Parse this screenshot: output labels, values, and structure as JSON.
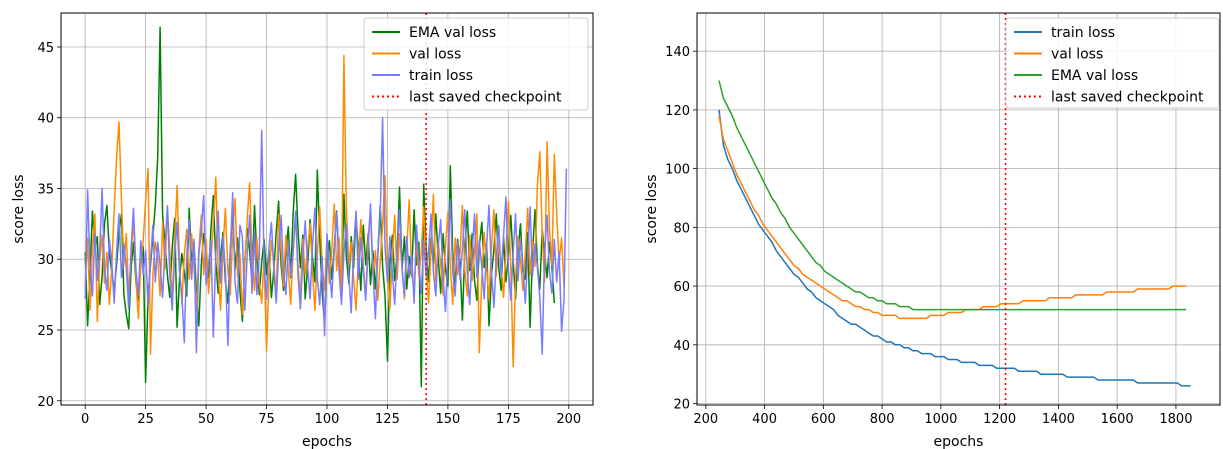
{
  "chart_data": [
    {
      "type": "line",
      "xlabel": "epochs",
      "ylabel": "score loss",
      "xlim": [
        -10,
        210
      ],
      "ylim": [
        19.7,
        47.4
      ],
      "xticks": [
        0,
        25,
        50,
        75,
        100,
        125,
        150,
        175,
        200
      ],
      "yticks": [
        20,
        25,
        30,
        35,
        40,
        45
      ],
      "grid": true,
      "legend_position": "top-right",
      "checkpoint": {
        "label": "last saved checkpoint",
        "x": 141,
        "color": "#ff0000"
      },
      "series": [
        {
          "name": "EMA val loss",
          "color": "#008000",
          "x_start": 0,
          "x_step": 1,
          "values": [
            30.5,
            25.3,
            29.0,
            33.4,
            30.7,
            31.6,
            26.8,
            28.8,
            32.5,
            33.8,
            30.4,
            29.1,
            27.8,
            29.6,
            31.9,
            33.2,
            27.5,
            26.1,
            25.1,
            29.4,
            31.2,
            28.3,
            27.1,
            29.8,
            30.9,
            21.3,
            27.4,
            29.6,
            31.6,
            33.8,
            37.2,
            46.4,
            33.1,
            31.2,
            28.9,
            27.3,
            30.8,
            32.9,
            25.2,
            28.6,
            30.4,
            29.1,
            27.4,
            33.6,
            29.9,
            31.2,
            27.5,
            25.3,
            29.6,
            31.8,
            30.5,
            28.7,
            32.1,
            34.5,
            29.8,
            27.6,
            30.2,
            31.9,
            28.4,
            26.9,
            30.7,
            33.1,
            29.3,
            31.5,
            27.8,
            25.6,
            29.9,
            32.2,
            30.6,
            28.4,
            33.8,
            30.2,
            27.5,
            29.8,
            31.4,
            28.9,
            30.6,
            27.3,
            29.2,
            31.9,
            34.1,
            29.6,
            27.8,
            30.5,
            32.3,
            28.7,
            33.2,
            36.0,
            32.1,
            29.4,
            31.7,
            27.2,
            29.6,
            32.8,
            30.1,
            28.4,
            36.3,
            31.5,
            27.6,
            25.4,
            29.8,
            31.3,
            28.6,
            30.9,
            33.4,
            29.7,
            27.5,
            34.6,
            30.2,
            28.3,
            31.6,
            29.4,
            33.1,
            30.5,
            27.8,
            32.4,
            29.6,
            31.8,
            28.2,
            30.6,
            27.9,
            30.3,
            33.8,
            29.5,
            27.4,
            22.8,
            29.6,
            31.7,
            28.5,
            30.4,
            35.1,
            29.3,
            31.6,
            27.9,
            30.2,
            28.8,
            33.5,
            29.6,
            31.2,
            21.0,
            35.3,
            30.8,
            28.4,
            31.5,
            29.7,
            33.2,
            30.1,
            27.6,
            31.8,
            29.3,
            28.1,
            36.6,
            30.5,
            28.2,
            31.4,
            29.8,
            25.7,
            30.6,
            33.4,
            29.2,
            31.8,
            28.5,
            27.1,
            30.9,
            32.6,
            29.4,
            31.1,
            25.3,
            28.8,
            30.7,
            33.2,
            29.5,
            27.8,
            31.6,
            28.4,
            30.3,
            33.1,
            29.8,
            27.2,
            30.6,
            32.5,
            29.1,
            28.6,
            31.9,
            25.2,
            30.4,
            33.5,
            29.6,
            27.9,
            32.1,
            30.4,
            28.7,
            31.2,
            29.5,
            26.9
          ]
        },
        {
          "name": "val loss",
          "color": "#ff8c00",
          "x_start": 0,
          "x_step": 1,
          "values": [
            28.2,
            31.5,
            26.4,
            30.8,
            33.2,
            25.6,
            29.9,
            31.7,
            28.3,
            30.5,
            26.8,
            29.4,
            33.6,
            37.2,
            39.7,
            34.1,
            29.6,
            31.8,
            27.4,
            30.2,
            32.9,
            28.5,
            25.8,
            29.7,
            31.3,
            34.1,
            36.4,
            23.3,
            28.9,
            31.2,
            30.1,
            27.4,
            32.6,
            29.3,
            33.8,
            30.5,
            27.1,
            31.4,
            35.2,
            29.7,
            26.8,
            30.3,
            32.1,
            28.6,
            31.8,
            29.4,
            26.3,
            30.6,
            33.1,
            28.9,
            31.4,
            27.6,
            29.8,
            32.5,
            35.8,
            29.1,
            26.4,
            30.7,
            33.6,
            29.2,
            27.5,
            31.9,
            34.3,
            28.8,
            30.4,
            26.1,
            29.7,
            32.8,
            35.4,
            30.2,
            27.8,
            31.5,
            28.4,
            26.9,
            30.1,
            23.5,
            28.6,
            31.3,
            29.8,
            27.4,
            33.2,
            30.6,
            28.1,
            31.7,
            29.3,
            26.8,
            30.5,
            33.1,
            29.6,
            27.2,
            31.4,
            28.9,
            30.8,
            32.5,
            29.1,
            26.4,
            30.2,
            33.7,
            29.5,
            27.8,
            31.6,
            28.3,
            30.7,
            33.9,
            29.2,
            31.5,
            27.4,
            44.4,
            33.8,
            29.5,
            31.2,
            28.7,
            26.4,
            30.1,
            32.8,
            29.6,
            27.3,
            31.5,
            33.4,
            28.9,
            30.6,
            27.1,
            29.8,
            32.4,
            35.9,
            29.7,
            26.5,
            30.3,
            33.1,
            28.6,
            31.8,
            29.4,
            27.2,
            30.7,
            34.2,
            29.1,
            27.6,
            31.4,
            28.8,
            30.5,
            33.7,
            29.3,
            26.9,
            30.8,
            34.6,
            28.4,
            31.2,
            29.7,
            27.5,
            30.9,
            33.3,
            29.6,
            26.8,
            31.5,
            28.9,
            30.4,
            33.8,
            29.2,
            27.4,
            31.7,
            28.5,
            30.6,
            33.2,
            23.4,
            28.6,
            31.9,
            29.4,
            27.1,
            30.8,
            33.5,
            28.8,
            31.2,
            29.6,
            27.3,
            30.5,
            34.1,
            29.4,
            22.4,
            28.7,
            31.6,
            29.9,
            27.8,
            30.4,
            33.6,
            28.9,
            31.3,
            29.5,
            35.2,
            37.6,
            31.8,
            28.4,
            38.3,
            32.1,
            29.6,
            37.4,
            33.2,
            29.8,
            31.5,
            28.1
          ]
        },
        {
          "name": "train loss",
          "color": "#7b7bff",
          "x_start": 0,
          "x_step": 1,
          "values": [
            27.2,
            34.9,
            29.6,
            27.4,
            31.8,
            28.5,
            30.6,
            35.0,
            29.3,
            27.8,
            31.4,
            29.7,
            26.9,
            30.5,
            33.2,
            28.7,
            31.1,
            29.4,
            26.5,
            30.8,
            33.6,
            29.2,
            27.5,
            31.3,
            28.9,
            30.6,
            26.7,
            29.9,
            32.4,
            28.4,
            31.2,
            29.6,
            27.3,
            30.8,
            33.7,
            28.9,
            26.4,
            30.3,
            32.6,
            29.1,
            27.4,
            24.1,
            30.2,
            32.8,
            28.6,
            31.4,
            23.4,
            30.3,
            32.1,
            34.5,
            28.2,
            29.6,
            31.3,
            24.5,
            30.4,
            33.4,
            28.3,
            31.6,
            29.2,
            23.9,
            30.5,
            34.7,
            28.3,
            26.9,
            32.4,
            31.6,
            26.4,
            30.4,
            33.1,
            27.6,
            31.9,
            27.5,
            30.3,
            39.1,
            29.6,
            27.2,
            30.8,
            32.6,
            29.3,
            26.9,
            30.4,
            33.1,
            29.1,
            27.5,
            31.2,
            28.8,
            30.5,
            33.4,
            28.9,
            26.5,
            30.1,
            32.7,
            29.4,
            27.2,
            30.9,
            33.6,
            28.7,
            26.8,
            30.2,
            24.6,
            31.8,
            29.2,
            27.3,
            30.8,
            33.3,
            29.1,
            26.8,
            30.4,
            32.5,
            28.9,
            26.2,
            30.7,
            33.4,
            28.6,
            31.5,
            29.3,
            27.1,
            30.6,
            33.9,
            29.2,
            25.8,
            30.4,
            33.1,
            40.0,
            30.9,
            28.4,
            31.6,
            29.1,
            26.8,
            30.2,
            33.5,
            29.4,
            27.4,
            31.6,
            28.7,
            30.3,
            26.9,
            32.4,
            29.6,
            27.6,
            31.3,
            28.8,
            30.6,
            33.2,
            29.1,
            27.4,
            30.9,
            32.8,
            28.6,
            26.3,
            30.5,
            34.2,
            29.2,
            27.4,
            31.2,
            28.6,
            30.7,
            33.5,
            29.1,
            26.8,
            30.4,
            33.2,
            28.7,
            31.3,
            29.5,
            27.2,
            30.9,
            33.8,
            29.2,
            26.6,
            30.1,
            32.4,
            28.9,
            31.6,
            34.4,
            29.3,
            27.1,
            30.5,
            33.2,
            28.5,
            31.4,
            29.6,
            26.9,
            30.2,
            33.7,
            28.8,
            31.1,
            29.4,
            27.3,
            23.3,
            30.6,
            33.1,
            29.1,
            27.6,
            31.4,
            28.4,
            30.5,
            24.9,
            27.2,
            36.4
          ]
        }
      ]
    },
    {
      "type": "line",
      "xlabel": "epochs",
      "ylabel": "score loss",
      "xlim": [
        170,
        1950
      ],
      "ylim": [
        19.5,
        153
      ],
      "xticks": [
        200,
        400,
        600,
        800,
        1000,
        1200,
        1400,
        1600,
        1800
      ],
      "yticks": [
        20,
        40,
        60,
        80,
        100,
        120,
        140
      ],
      "grid": true,
      "legend_position": "top-right",
      "checkpoint": {
        "label": "last saved checkpoint",
        "x": 1220,
        "color": "#ff0000"
      },
      "series": [
        {
          "name": "train loss",
          "color": "#1f77b4",
          "x_start": 245,
          "x_step": 15,
          "values": [
            120,
            108,
            103,
            100,
            96,
            93,
            90,
            87,
            84,
            81,
            79,
            77,
            75,
            72,
            70,
            68,
            66,
            64,
            63,
            61,
            59,
            58,
            56,
            55,
            54,
            53,
            52,
            50,
            49,
            48,
            47,
            47,
            46,
            45,
            44,
            43,
            43,
            42,
            41,
            41,
            40,
            40,
            39,
            39,
            38,
            38,
            37,
            37,
            37,
            36,
            36,
            36,
            35,
            35,
            35,
            34,
            34,
            34,
            34,
            33,
            33,
            33,
            33,
            32,
            32,
            32,
            32,
            32,
            31,
            31,
            31,
            31,
            31,
            30,
            30,
            30,
            30,
            30,
            30,
            29,
            29,
            29,
            29,
            29,
            29,
            29,
            28,
            28,
            28,
            28,
            28,
            28,
            28,
            28,
            28,
            27,
            27,
            27,
            27,
            27,
            27,
            27,
            27,
            27,
            27,
            26,
            26,
            26
          ]
        },
        {
          "name": "val loss",
          "color": "#ff7f0e",
          "x_start": 245,
          "x_step": 15,
          "values": [
            118,
            110,
            106,
            102,
            98,
            95,
            92,
            89,
            86,
            84,
            81,
            79,
            77,
            75,
            73,
            71,
            69,
            67,
            66,
            64,
            63,
            62,
            61,
            60,
            59,
            58,
            57,
            56,
            55,
            55,
            54,
            53,
            53,
            52,
            52,
            51,
            51,
            50,
            50,
            50,
            50,
            49,
            49,
            49,
            49,
            49,
            49,
            49,
            50,
            50,
            50,
            50,
            51,
            51,
            51,
            51,
            52,
            52,
            52,
            52,
            53,
            53,
            53,
            53,
            54,
            54,
            54,
            54,
            54,
            55,
            55,
            55,
            55,
            55,
            55,
            56,
            56,
            56,
            56,
            56,
            56,
            57,
            57,
            57,
            57,
            57,
            57,
            57,
            58,
            58,
            58,
            58,
            58,
            58,
            58,
            59,
            59,
            59,
            59,
            59,
            59,
            59,
            59,
            60,
            60,
            60,
            60
          ]
        },
        {
          "name": "EMA val loss",
          "color": "#2ca02c",
          "x_start": 245,
          "x_step": 15,
          "values": [
            130,
            124,
            121,
            118,
            114,
            111,
            108,
            105,
            102,
            99,
            96,
            93,
            90,
            88,
            85,
            83,
            80,
            78,
            76,
            74,
            72,
            70,
            68,
            67,
            65,
            64,
            63,
            62,
            61,
            60,
            59,
            58,
            58,
            57,
            56,
            56,
            55,
            55,
            54,
            54,
            54,
            53,
            53,
            53,
            52,
            52,
            52,
            52,
            52,
            52,
            52,
            52,
            52,
            52,
            52,
            52,
            52,
            52,
            52,
            52,
            52,
            52,
            52,
            52,
            52,
            52,
            52,
            52,
            52,
            52,
            52,
            52,
            52,
            52,
            52,
            52,
            52,
            52,
            52,
            52,
            52,
            52,
            52,
            52,
            52,
            52,
            52,
            52,
            52,
            52,
            52,
            52,
            52,
            52,
            52,
            52,
            52,
            52,
            52,
            52,
            52,
            52,
            52,
            52,
            52,
            52,
            52
          ]
        }
      ]
    }
  ]
}
